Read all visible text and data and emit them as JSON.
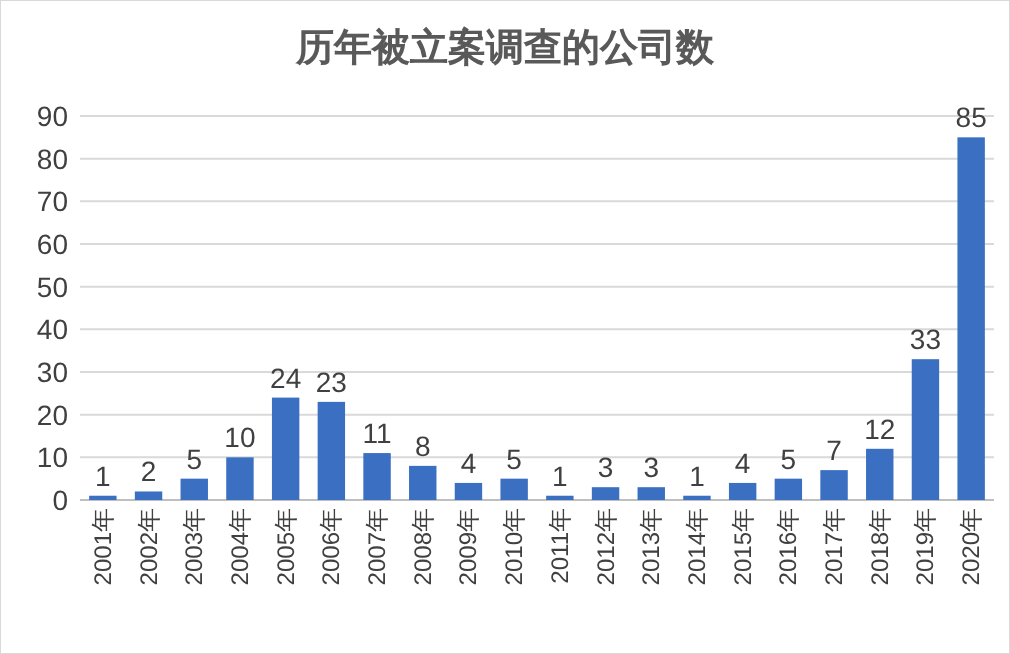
{
  "chart_data": {
    "type": "bar",
    "title": "历年被立案调查的公司数",
    "categories": [
      "2001年",
      "2002年",
      "2003年",
      "2004年",
      "2005年",
      "2006年",
      "2007年",
      "2008年",
      "2009年",
      "2010年",
      "2011年",
      "2012年",
      "2013年",
      "2014年",
      "2015年",
      "2016年",
      "2017年",
      "2018年",
      "2019年",
      "2020年"
    ],
    "values": [
      1,
      2,
      5,
      10,
      24,
      23,
      11,
      8,
      4,
      5,
      1,
      3,
      3,
      1,
      4,
      5,
      7,
      12,
      33,
      85
    ],
    "color": "#3a6fc2",
    "ylim": [
      0,
      90
    ],
    "yticks": [
      0,
      10,
      20,
      30,
      40,
      50,
      60,
      70,
      80,
      90
    ],
    "grid": "y",
    "data_labels": true
  }
}
